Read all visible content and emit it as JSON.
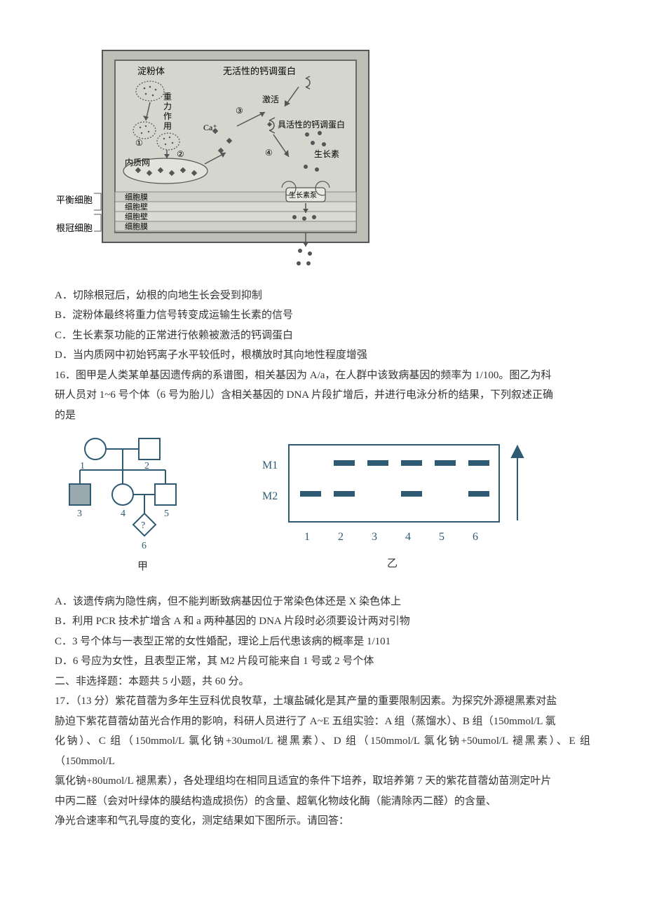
{
  "q15": {
    "diagram": {
      "labels": {
        "starch_body": "淀粉体",
        "inactive_cm": "无活性的钙调蛋白",
        "active_cm": "具活性的钙调蛋白",
        "activate": "激活",
        "gravity": "重力作用",
        "auxin": "生长素",
        "er": "内质网",
        "ca": "Ca⁺",
        "pump": "生长素泵",
        "balance_cell": "平衡细胞",
        "root_cap_cell": "根冠细胞",
        "membrane": "细胞膜",
        "wall": "细胞壁",
        "n1": "①",
        "n2": "②",
        "n3": "③",
        "n4": "④"
      },
      "colors": {
        "outer_frame": "#8a8a88",
        "inner_fill": "#d5d7ce",
        "inner_stroke": "#6a6a66",
        "light_stroke": "#555555",
        "dot": "#555555"
      }
    },
    "options": {
      "A": "A．切除根冠后，幼根的向地生长会受到抑制",
      "B": "B．淀粉体最终将重力信号转变成运输生长素的信号",
      "C": "C．生长素泵功能的正常进行依赖被激活的钙调蛋白",
      "D": "D．当内质网中初始钙离子水平较低时，根横放时其向地性程度增强"
    }
  },
  "q16": {
    "stem_lines": [
      "16．图甲是人类某单基因遗传病的系谱图，相关基因为 A/a，在人群中该致病基因的频率为 1/100。图乙为科",
      "研人员对 1~6 号个体（6 号为胎儿）含相关基因的 DNA 片段扩增后，并进行电泳分析的结果，下列叙述正确",
      "的是"
    ],
    "pedigree": {
      "labels": {
        "n1": "1",
        "n2": "2",
        "n3": "3",
        "n4": "4",
        "n5": "5",
        "n6": "6",
        "q": "?",
        "cap": "甲"
      }
    },
    "gel": {
      "rows": [
        "M1",
        "M2"
      ],
      "cols": [
        "1",
        "2",
        "3",
        "4",
        "5",
        "6"
      ],
      "cap": "乙",
      "bands": {
        "M1": [
          false,
          true,
          true,
          true,
          true,
          true
        ],
        "M2": [
          true,
          true,
          false,
          true,
          false,
          true
        ]
      }
    },
    "options": {
      "A": "A．该遗传病为隐性病，但不能判断致病基因位于常染色体还是 X 染色体上",
      "B": "B．利用 PCR 技术扩增含 A 和 a 两种基因的 DNA 片段时必须要设计两对引物",
      "C": "C．3 号个体与一表型正常的女性婚配，理论上后代患该病的概率是 1/101",
      "D": "D．6 号应为女性，且表型正常，其 M2 片段可能来自 1 号或 2 号个体"
    }
  },
  "sectionII": "二、非选择题：本题共 5 小题，共 60 分。",
  "q17": {
    "lines": [
      "17．（13 分）紫花苜蓿为多年生豆科优良牧草，土壤盐碱化是其产量的重要限制因素。为探究外源褪黑素对盐",
      "胁迫下紫花苜蓿幼苗光合作用的影响，科研人员进行了 A~E 五组实验：A 组（蒸馏水）、B 组（150mmol/L 氯",
      "化钠）、C 组（150mmol/L 氯化钠+30umol/L 褪黑素）、D 组（150mmol/L 氯化钠+50umol/L 褪黑素）、E 组（150mmol/L",
      "氯化钠+80umol/L 褪黑素），各处理组均在相同且适宜的条件下培养，取培养第 7 天的紫花苜蓿幼苗测定叶片",
      "中丙二醛（会对叶绿体的膜结构造成损伤）的含量、超氧化物歧化酶（能清除丙二醛）的含量、",
      "净光合速率和气孔导度的变化，测定结果如下图所示。请回答："
    ]
  }
}
